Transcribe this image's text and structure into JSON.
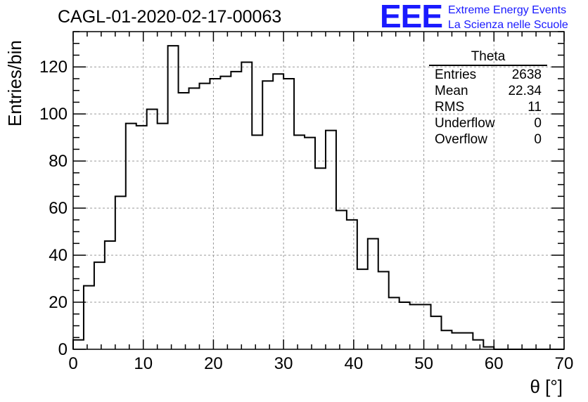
{
  "title": "CAGL-01-2020-02-17-00063",
  "logo": {
    "mark": "EEE",
    "line1": "Extreme Energy Events",
    "line2": "La Scienza nelle Scuole"
  },
  "stats": {
    "title": "Theta",
    "rows": [
      {
        "label": "Entries",
        "value": "2638"
      },
      {
        "label": "Mean",
        "value": "22.34"
      },
      {
        "label": "RMS",
        "value": "11"
      },
      {
        "label": "Underflow",
        "value": "0"
      },
      {
        "label": "Overflow",
        "value": "0"
      }
    ]
  },
  "colors": {
    "line": "#000000",
    "grid": "#9a9a9a",
    "logo": "#1a1aff"
  },
  "chart_data": {
    "type": "histogram",
    "title": "CAGL-01-2020-02-17-00063",
    "xlabel": "θ [°]",
    "ylabel": "Entries/bin",
    "xlim": [
      0,
      70
    ],
    "ylim": [
      0,
      135
    ],
    "grid": true,
    "bin_width": 1.5,
    "x_ticks": [
      0,
      10,
      20,
      30,
      40,
      50,
      60,
      70
    ],
    "y_ticks": [
      0,
      20,
      40,
      60,
      80,
      100,
      120
    ],
    "bin_edges_start": 0,
    "values": [
      4,
      27,
      37,
      46,
      65,
      96,
      95,
      102,
      96,
      129,
      109,
      111,
      113,
      115,
      116,
      118,
      122,
      91,
      114,
      117,
      115,
      91,
      90,
      77,
      93,
      59,
      55,
      34,
      47,
      33,
      22,
      20,
      19,
      19,
      14,
      8,
      7,
      7,
      4,
      1,
      0,
      0,
      0,
      0,
      0,
      0,
      0
    ]
  }
}
